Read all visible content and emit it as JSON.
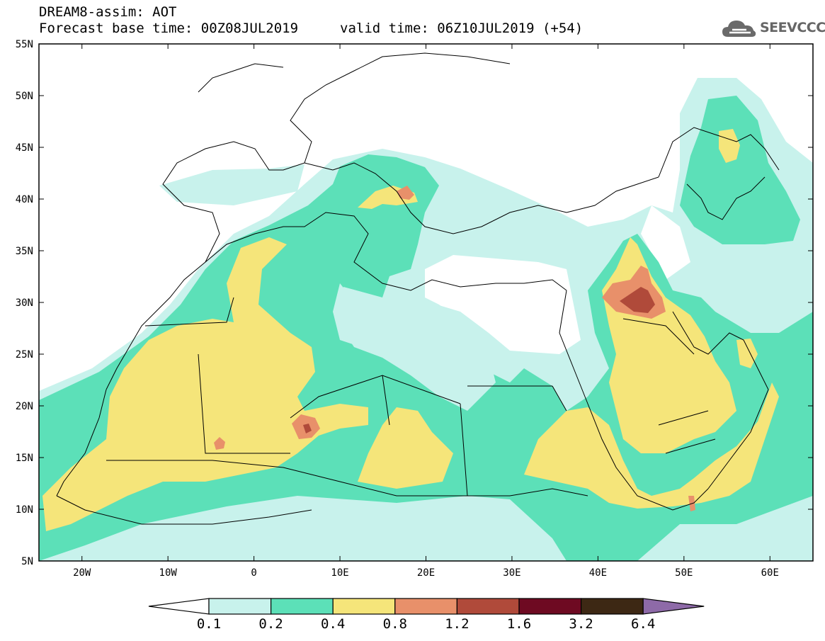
{
  "header": {
    "title": "DREAM8-assim: AOT",
    "base_time": "Forecast base time: 00Z08JUL2019",
    "valid_time": "valid time: 06Z10JUL2019 (+54)"
  },
  "logo": {
    "text": "SEEVCCC",
    "icon": "cloud-icon"
  },
  "map": {
    "lat_labels": [
      "55N",
      "50N",
      "45N",
      "40N",
      "35N",
      "30N",
      "25N",
      "20N",
      "15N",
      "10N",
      "5N"
    ],
    "lon_labels": [
      "20W",
      "10W",
      "0",
      "10E",
      "20E",
      "30E",
      "40E",
      "50E",
      "60E"
    ],
    "extent": {
      "lon_min": -25,
      "lon_max": 65,
      "lat_min": 5,
      "lat_max": 55
    }
  },
  "colorbar": {
    "labels": [
      "0.1",
      "0.2",
      "0.4",
      "0.8",
      "1.2",
      "1.6",
      "3.2",
      "6.4"
    ],
    "colors": [
      "#ffffff",
      "#c8f2ec",
      "#5ce0b8",
      "#f5e57a",
      "#e8906a",
      "#b04a3a",
      "#6e0a22",
      "#3d2814",
      "#8e6aa8"
    ]
  }
}
